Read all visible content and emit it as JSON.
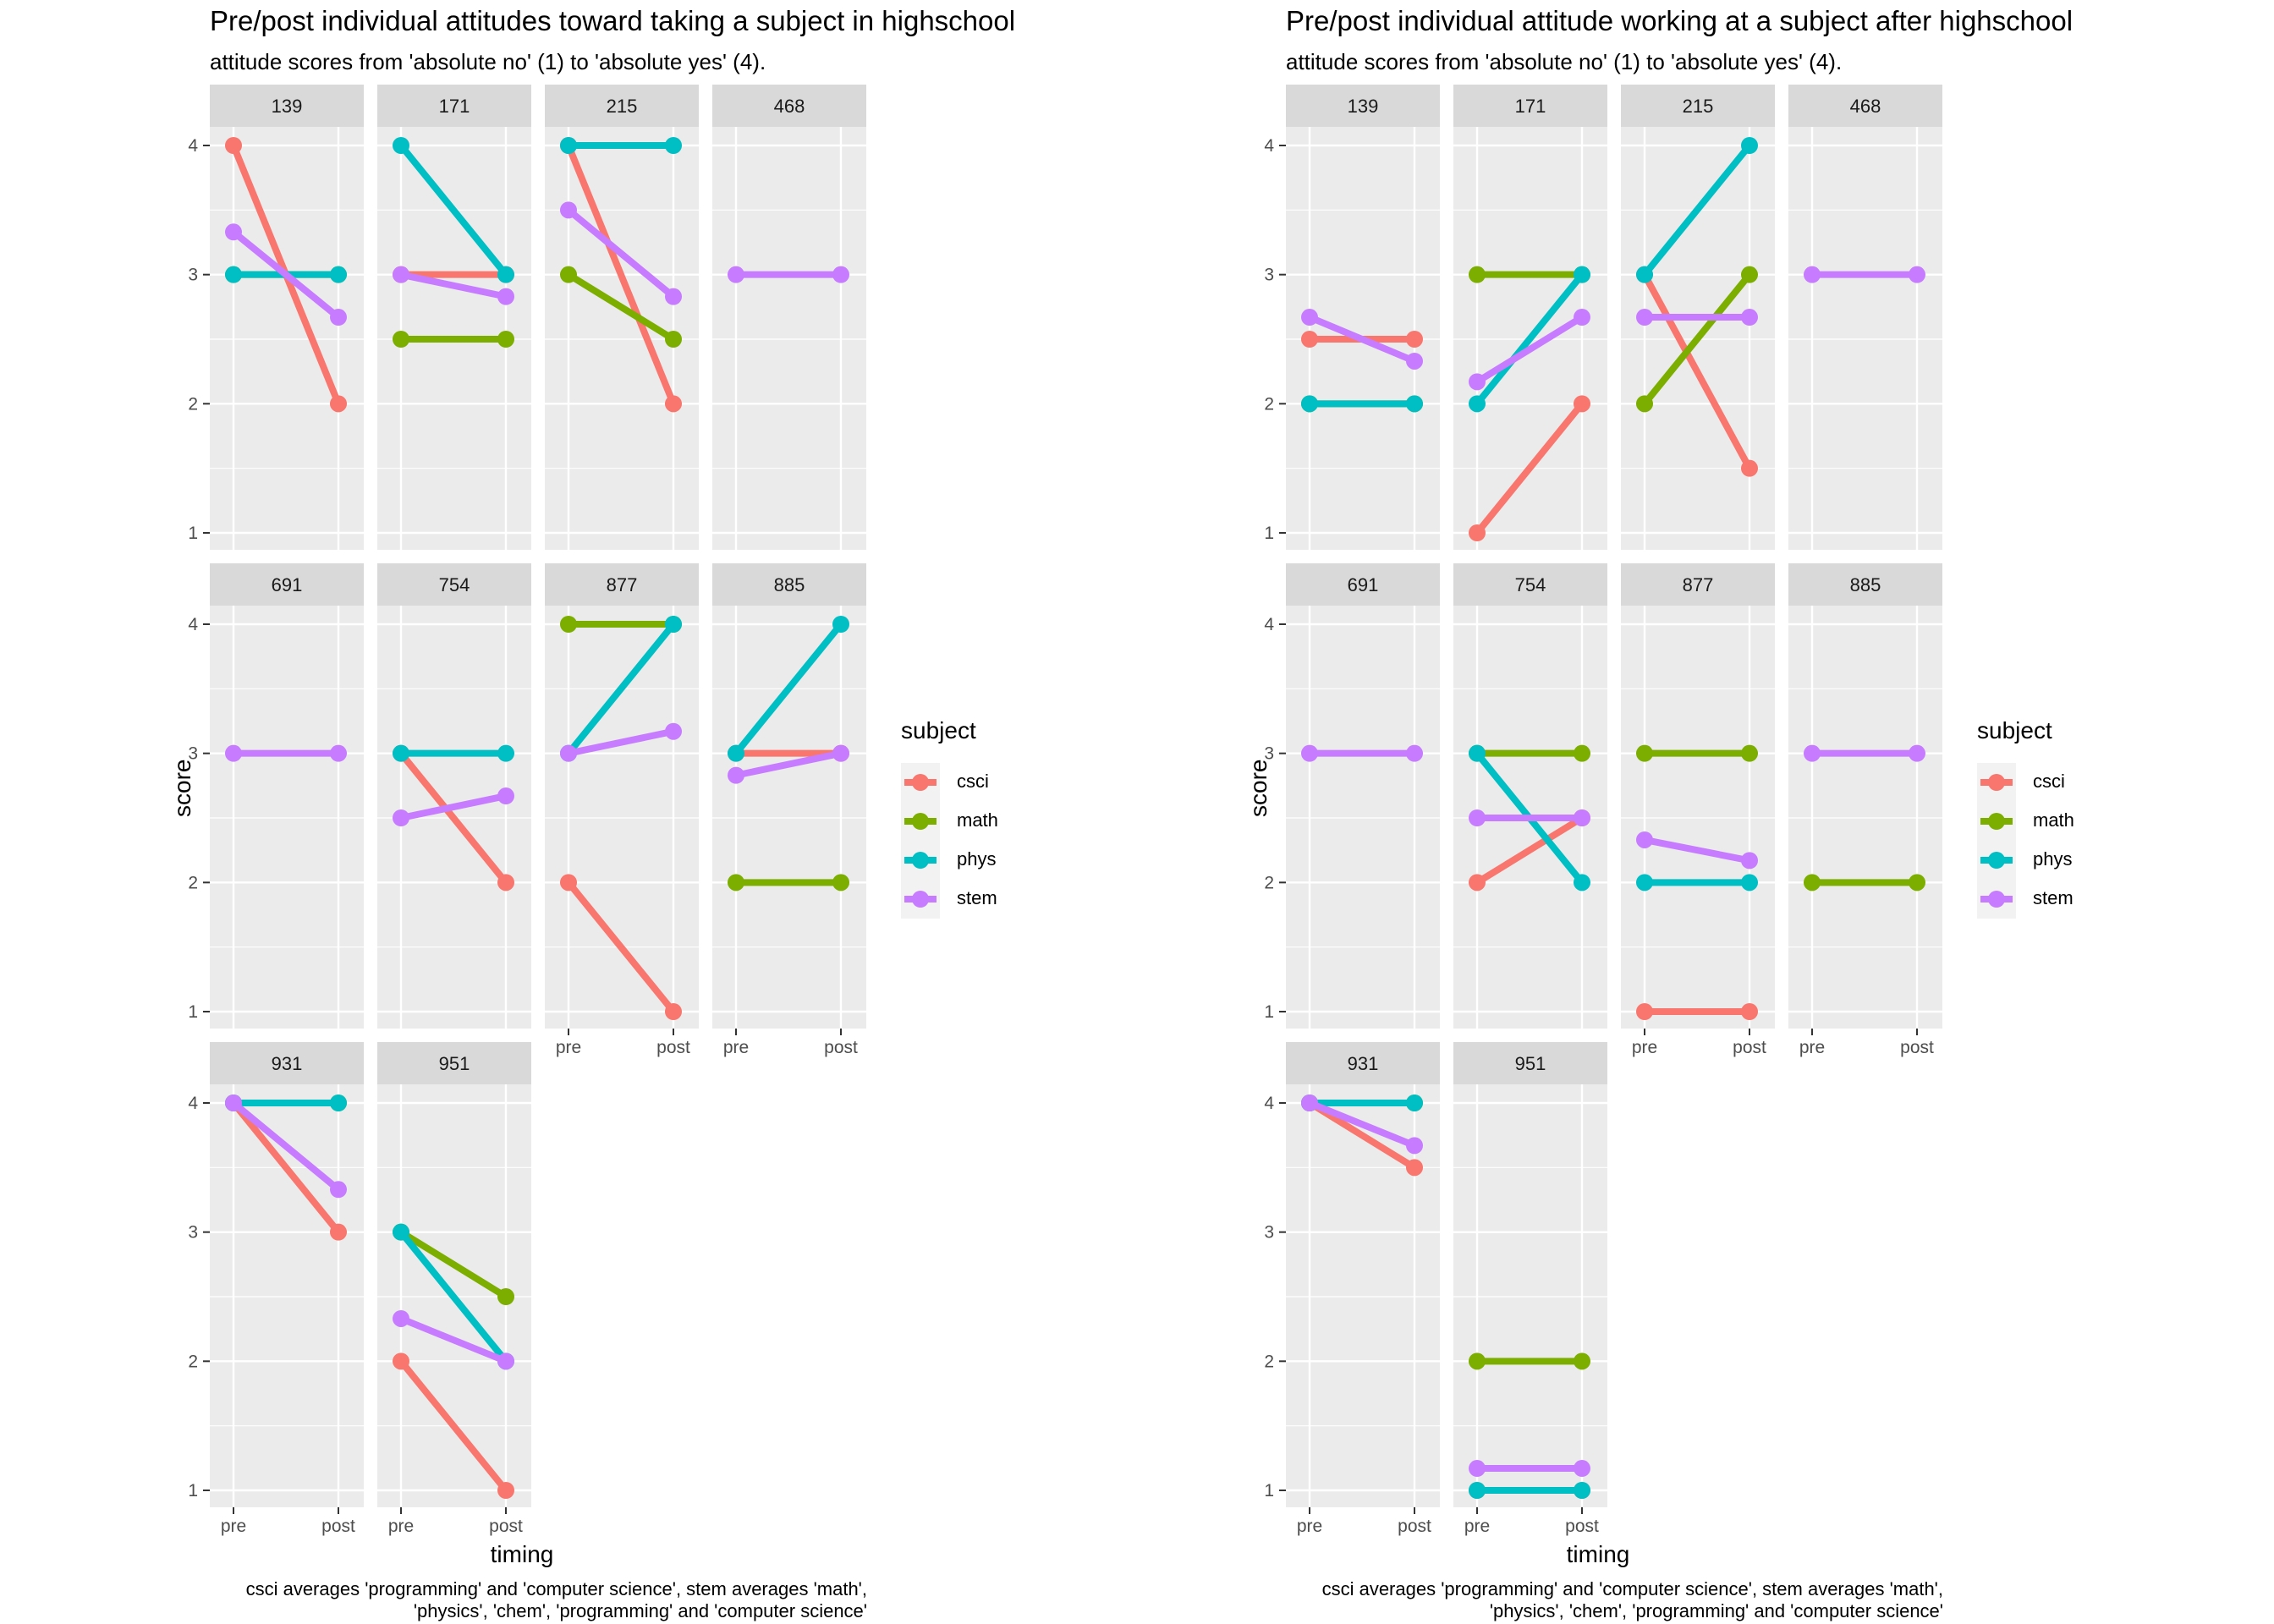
{
  "colors": {
    "csci": "#F8766D",
    "math": "#7CAE00",
    "phys": "#00BFC4",
    "stem": "#C77CFF"
  },
  "charts": [
    {
      "title": "Pre/post individual attitudes toward taking a subject in highschool",
      "subtitle": "attitude scores from 'absolute no' (1) to 'absolute yes' (4).",
      "xlabel": "timing",
      "ylabel": "score",
      "caption_line1": "csci averages 'programming' and 'computer science', stem averages 'math',",
      "caption_line2": "'physics', 'chem', 'programming' and 'computer science'",
      "legend_title": "subject",
      "legend_items": [
        "csci",
        "math",
        "phys",
        "stem"
      ]
    },
    {
      "title": "Pre/post individual attitude working at a subject after highschool",
      "subtitle": "attitude scores from 'absolute no' (1) to 'absolute yes' (4).",
      "xlabel": "timing",
      "ylabel": "score",
      "caption_line1": "csci averages 'programming' and 'computer science', stem averages 'math',",
      "caption_line2": "'physics', 'chem', 'programming' and 'computer science'",
      "legend_title": "subject",
      "legend_items": [
        "csci",
        "math",
        "phys",
        "stem"
      ]
    }
  ],
  "chart_data": [
    {
      "type": "line",
      "title": "Pre/post individual attitudes toward taking a subject in highschool",
      "subtitle": "attitude scores from 'absolute no' (1) to 'absolute yes' (4).",
      "xlabel": "timing",
      "ylabel": "score",
      "x": [
        "pre",
        "post"
      ],
      "ylim": [
        1,
        4
      ],
      "yticks": [
        1,
        2,
        3,
        4
      ],
      "grid": true,
      "legend": "right",
      "panels": [
        {
          "id": "139",
          "series": [
            {
              "name": "csci",
              "values": [
                4,
                2
              ]
            },
            {
              "name": "math",
              "values": [
                3,
                3
              ]
            },
            {
              "name": "phys",
              "values": [
                3,
                3
              ]
            },
            {
              "name": "stem",
              "values": [
                3.33,
                2.67
              ]
            }
          ]
        },
        {
          "id": "171",
          "series": [
            {
              "name": "csci",
              "values": [
                3,
                3
              ]
            },
            {
              "name": "math",
              "values": [
                2.5,
                2.5
              ]
            },
            {
              "name": "phys",
              "values": [
                4,
                3
              ]
            },
            {
              "name": "stem",
              "values": [
                3,
                2.83
              ]
            }
          ]
        },
        {
          "id": "215",
          "series": [
            {
              "name": "csci",
              "values": [
                4,
                2
              ]
            },
            {
              "name": "math",
              "values": [
                3,
                2.5
              ]
            },
            {
              "name": "phys",
              "values": [
                4,
                4
              ]
            },
            {
              "name": "stem",
              "values": [
                3.5,
                2.83
              ]
            }
          ]
        },
        {
          "id": "468",
          "series": [
            {
              "name": "stem",
              "values": [
                3,
                3
              ]
            }
          ]
        },
        {
          "id": "691",
          "series": [
            {
              "name": "stem",
              "values": [
                3,
                3
              ]
            }
          ]
        },
        {
          "id": "754",
          "series": [
            {
              "name": "csci",
              "values": [
                3,
                2
              ]
            },
            {
              "name": "phys",
              "values": [
                3,
                3
              ]
            },
            {
              "name": "stem",
              "values": [
                2.5,
                2.67
              ]
            }
          ]
        },
        {
          "id": "877",
          "series": [
            {
              "name": "csci",
              "values": [
                2,
                1
              ]
            },
            {
              "name": "math",
              "values": [
                4,
                4
              ]
            },
            {
              "name": "phys",
              "values": [
                3,
                4
              ]
            },
            {
              "name": "stem",
              "values": [
                3,
                3.17
              ]
            }
          ]
        },
        {
          "id": "885",
          "series": [
            {
              "name": "csci",
              "values": [
                3,
                3
              ]
            },
            {
              "name": "math",
              "values": [
                2,
                2
              ]
            },
            {
              "name": "phys",
              "values": [
                3,
                4
              ]
            },
            {
              "name": "stem",
              "values": [
                2.83,
                3
              ]
            }
          ]
        },
        {
          "id": "931",
          "series": [
            {
              "name": "csci",
              "values": [
                4,
                3
              ]
            },
            {
              "name": "math",
              "values": [
                4,
                4
              ]
            },
            {
              "name": "phys",
              "values": [
                4,
                4
              ]
            },
            {
              "name": "stem",
              "values": [
                4,
                3.33
              ]
            }
          ]
        },
        {
          "id": "951",
          "series": [
            {
              "name": "csci",
              "values": [
                2,
                1
              ]
            },
            {
              "name": "math",
              "values": [
                3,
                2.5
              ]
            },
            {
              "name": "phys",
              "values": [
                3,
                2
              ]
            },
            {
              "name": "stem",
              "values": [
                2.33,
                2
              ]
            }
          ]
        }
      ]
    },
    {
      "type": "line",
      "title": "Pre/post individual attitude working at a subject after highschool",
      "subtitle": "attitude scores from 'absolute no' (1) to 'absolute yes' (4).",
      "xlabel": "timing",
      "ylabel": "score",
      "x": [
        "pre",
        "post"
      ],
      "ylim": [
        1,
        4
      ],
      "yticks": [
        1,
        2,
        3,
        4
      ],
      "grid": true,
      "legend": "right",
      "panels": [
        {
          "id": "139",
          "series": [
            {
              "name": "csci",
              "values": [
                2.5,
                2.5
              ]
            },
            {
              "name": "math",
              "values": [
                2,
                2
              ]
            },
            {
              "name": "phys",
              "values": [
                2,
                2
              ]
            },
            {
              "name": "stem",
              "values": [
                2.67,
                2.33
              ]
            }
          ]
        },
        {
          "id": "171",
          "series": [
            {
              "name": "csci",
              "values": [
                1,
                2
              ]
            },
            {
              "name": "math",
              "values": [
                3,
                3
              ]
            },
            {
              "name": "phys",
              "values": [
                2,
                3
              ]
            },
            {
              "name": "stem",
              "values": [
                2.17,
                2.67
              ]
            }
          ]
        },
        {
          "id": "215",
          "series": [
            {
              "name": "csci",
              "values": [
                3,
                1.5
              ]
            },
            {
              "name": "math",
              "values": [
                2,
                3
              ]
            },
            {
              "name": "phys",
              "values": [
                3,
                4
              ]
            },
            {
              "name": "stem",
              "values": [
                2.67,
                2.67
              ]
            }
          ]
        },
        {
          "id": "468",
          "series": [
            {
              "name": "stem",
              "values": [
                3,
                3
              ]
            }
          ]
        },
        {
          "id": "691",
          "series": [
            {
              "name": "stem",
              "values": [
                3,
                3
              ]
            }
          ]
        },
        {
          "id": "754",
          "series": [
            {
              "name": "csci",
              "values": [
                2,
                2.5
              ]
            },
            {
              "name": "math",
              "values": [
                3,
                3
              ]
            },
            {
              "name": "phys",
              "values": [
                3,
                2
              ]
            },
            {
              "name": "stem",
              "values": [
                2.5,
                2.5
              ]
            }
          ]
        },
        {
          "id": "877",
          "series": [
            {
              "name": "csci",
              "values": [
                1,
                1
              ]
            },
            {
              "name": "math",
              "values": [
                3,
                3
              ]
            },
            {
              "name": "phys",
              "values": [
                2,
                2
              ]
            },
            {
              "name": "stem",
              "values": [
                2.33,
                2.17
              ]
            }
          ]
        },
        {
          "id": "885",
          "series": [
            {
              "name": "math",
              "values": [
                2,
                2
              ]
            },
            {
              "name": "stem",
              "values": [
                3,
                3
              ]
            }
          ]
        },
        {
          "id": "931",
          "series": [
            {
              "name": "csci",
              "values": [
                4,
                3.5
              ]
            },
            {
              "name": "math",
              "values": [
                4,
                4
              ]
            },
            {
              "name": "phys",
              "values": [
                4,
                4
              ]
            },
            {
              "name": "stem",
              "values": [
                4,
                3.67
              ]
            }
          ]
        },
        {
          "id": "951",
          "series": [
            {
              "name": "csci",
              "values": [
                1,
                1
              ]
            },
            {
              "name": "math",
              "values": [
                2,
                2
              ]
            },
            {
              "name": "phys",
              "values": [
                1,
                1
              ]
            },
            {
              "name": "stem",
              "values": [
                1.17,
                1.17
              ]
            }
          ]
        }
      ]
    }
  ]
}
